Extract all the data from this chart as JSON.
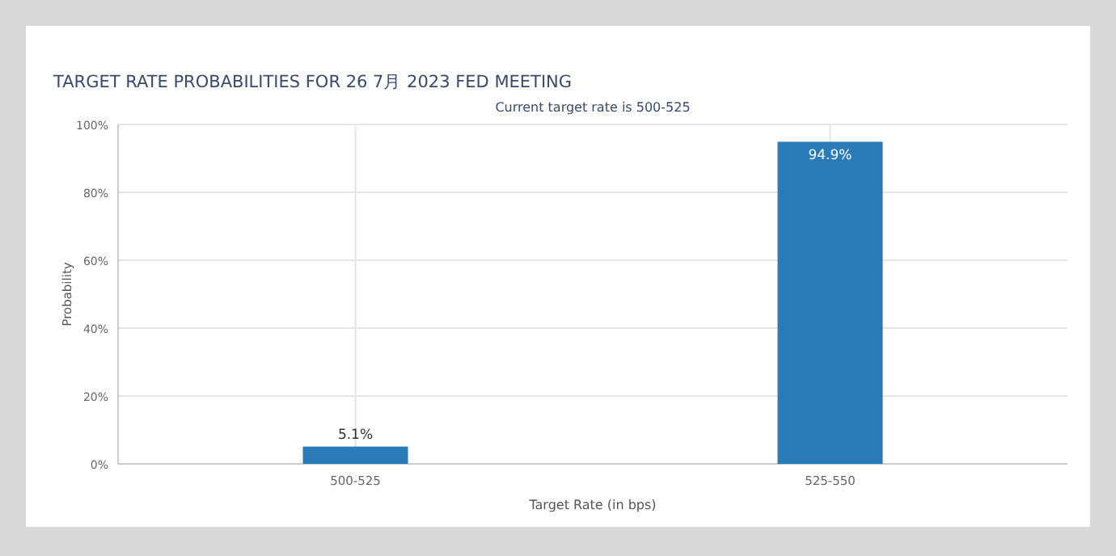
{
  "chart_data": {
    "type": "bar",
    "title": "TARGET RATE PROBABILITIES FOR 26 7月 2023 FED MEETING",
    "subtitle": "Current target rate is 500-525",
    "xlabel": "Target Rate (in bps)",
    "ylabel": "Probability",
    "categories": [
      "500-525",
      "525-550"
    ],
    "values": [
      5.1,
      94.9
    ],
    "value_labels": [
      "5.1%",
      "94.9%"
    ],
    "color": "#2a7ab5",
    "ylim": [
      0,
      100
    ],
    "yticks": [
      {
        "value": 0,
        "label": "0%"
      },
      {
        "value": 20,
        "label": "20%"
      },
      {
        "value": 40,
        "label": "40%"
      },
      {
        "value": 60,
        "label": "60%"
      },
      {
        "value": 80,
        "label": "80%"
      },
      {
        "value": 100,
        "label": "100%"
      }
    ],
    "grid": true
  }
}
